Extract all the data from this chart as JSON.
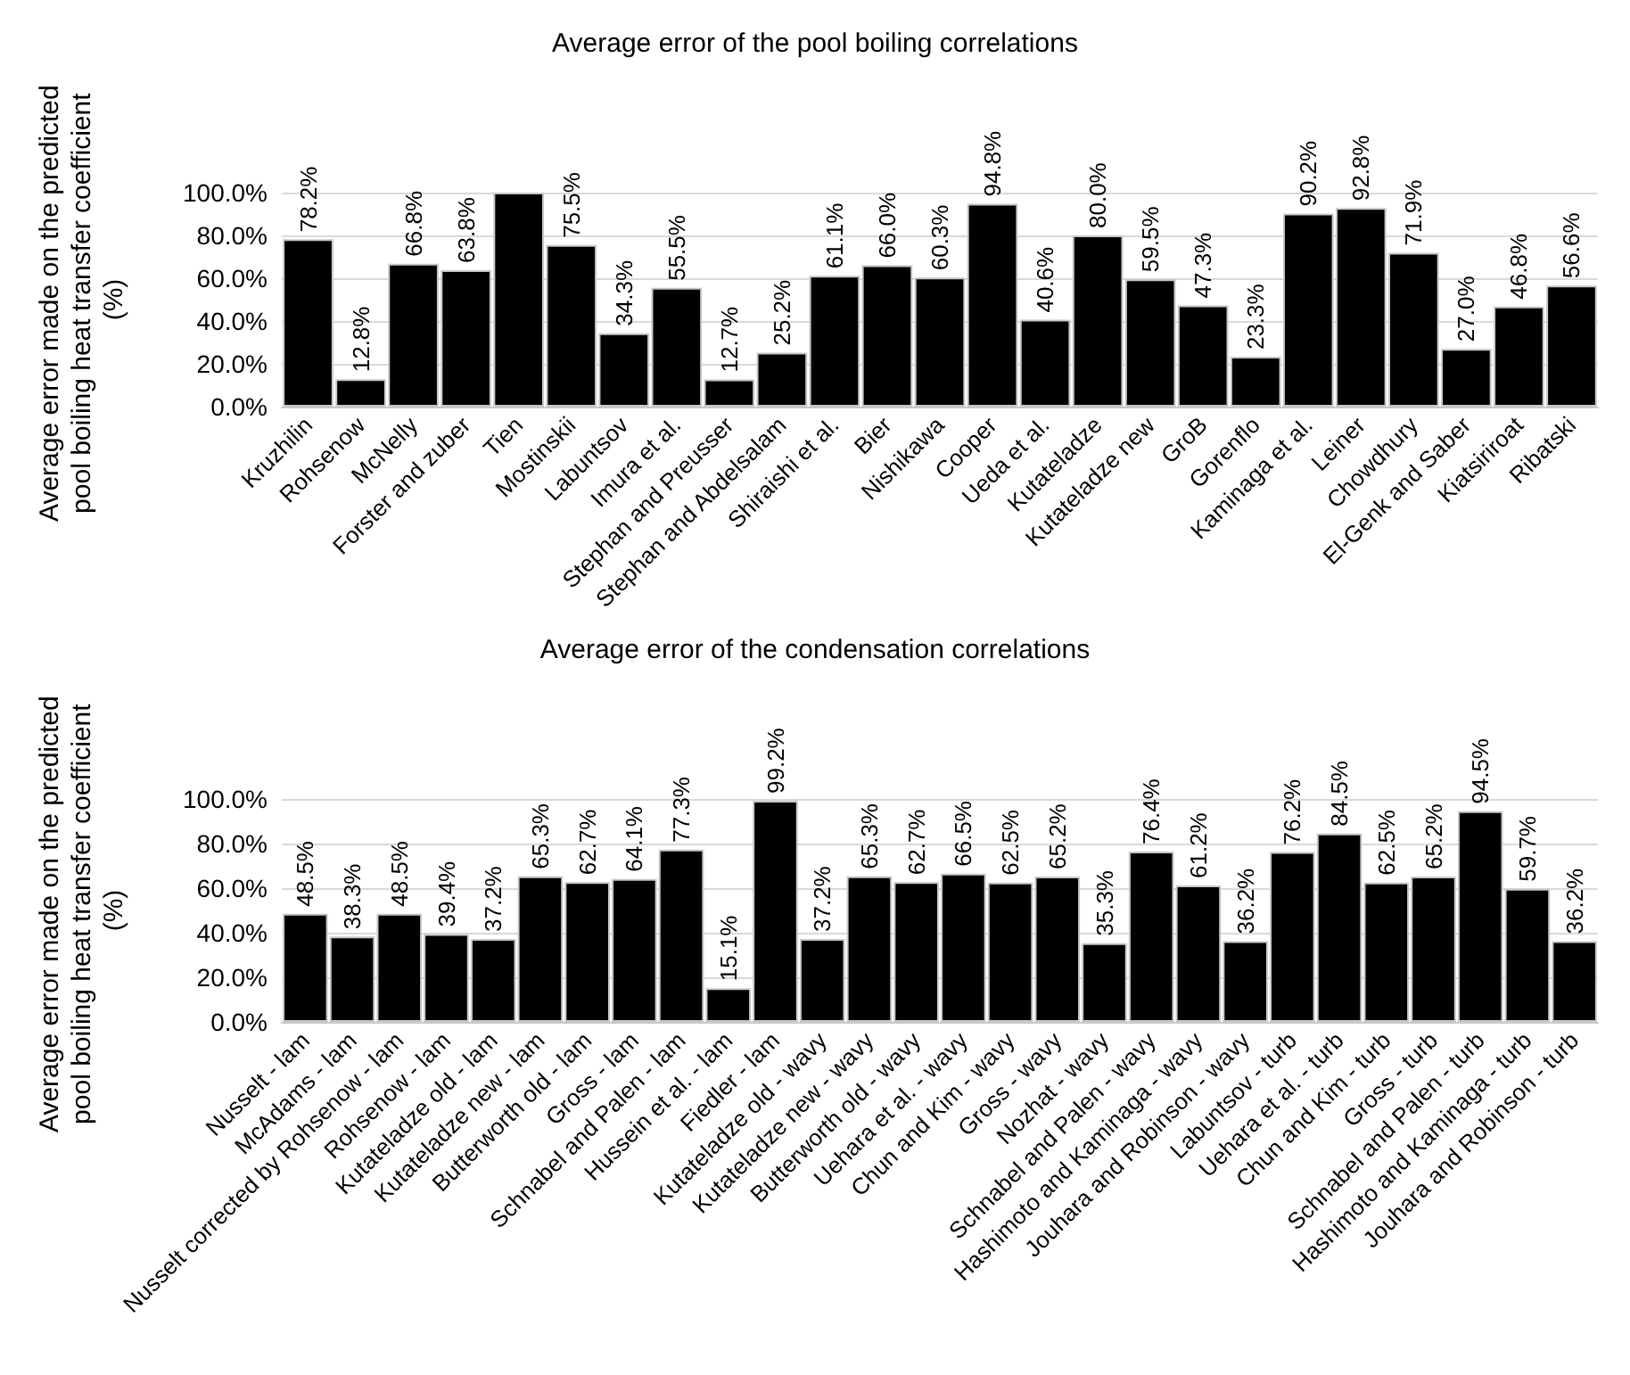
{
  "chart_data": [
    {
      "type": "bar",
      "title": "Average error of the pool boiling correlations",
      "ylabel": "Average error made on the predicted pool boiling heat transfer coefficient (%)",
      "categories": [
        "Kruzhilin",
        "Rohsenow",
        "McNelly",
        "Forster and zuber",
        "Tien",
        "Mostinskii",
        "Labuntsov",
        "Imura et al.",
        "Stephan and Preusser",
        "Stephan and Abdelsalam",
        "Shiraishi et al.",
        "Bier",
        "Nishikawa",
        "Cooper",
        "Ueda et al.",
        "Kutateladze",
        "Kutateladze new",
        "GroB",
        "Gorenflo",
        "Kaminaga et al.",
        "Leiner",
        "Chowdhury",
        "El-Genk and Saber",
        "Kiatsiriroat",
        "Ribatski"
      ],
      "values": [
        78.2,
        12.8,
        66.8,
        63.8,
        100,
        75.5,
        34.3,
        55.5,
        12.7,
        25.2,
        61.1,
        66.0,
        60.3,
        94.8,
        40.6,
        80.0,
        59.5,
        47.3,
        23.3,
        90.2,
        92.8,
        71.9,
        27.0,
        46.8,
        56.6
      ],
      "value_labels": [
        "78.2%",
        "12.8%",
        "66.8%",
        "63.8%",
        null,
        "75.5%",
        "34.3%",
        "55.5%",
        "12.7%",
        "25.2%",
        "61.1%",
        "66.0%",
        "60.3%",
        "94.8%",
        "40.6%",
        "80.0%",
        "59.5%",
        "47.3%",
        "23.3%",
        "90.2%",
        "92.8%",
        "71.9%",
        "27.0%",
        "46.8%",
        "56.6%"
      ],
      "color": "#000000",
      "ylim": [
        0,
        100
      ],
      "yticks": [
        {
          "value": 0,
          "label": "0.0%"
        },
        {
          "value": 20,
          "label": "20.0%"
        },
        {
          "value": 40,
          "label": "40.0%"
        },
        {
          "value": 60,
          "label": "60.0%"
        },
        {
          "value": 80,
          "label": "80.0%"
        },
        {
          "value": 100,
          "label": "100.0%"
        }
      ],
      "grid": "y"
    },
    {
      "type": "bar",
      "title": "Average error of the condensation correlations",
      "ylabel": "Average error made on the predicted pool boiling heat transfer coefficient (%)",
      "categories": [
        "Nusselt - lam",
        "McAdams - lam",
        "Nusselt corrected by Rohsenow - lam",
        "Rohsenow - lam",
        "Kutateladze old - lam",
        "Kutateladze new - lam",
        "Butterworth old - lam",
        "Gross - lam",
        "Schnabel and Palen - lam",
        "Hussein et al. - lam",
        "Fiedler - lam",
        "Kutateladze old - wavy",
        "Kutateladze new - wavy",
        "Butterworth old - wavy",
        "Uehara et al. - wavy",
        "Chun and Kim - wavy",
        "Gross - wavy",
        "Nozhat - wavy",
        "Schnabel and Palen - wavy",
        "Hashimoto and Kaminaga - wavy",
        "Jouhara and Robinson - wavy",
        "Labuntsov - turb",
        "Uehara et al. - turb",
        "Chun and Kim - turb",
        "Gross - turb",
        "Schnabel and Palen - turb",
        "Hashimoto and Kaminaga - turb",
        "Jouhara and Robinson - turb"
      ],
      "values": [
        48.5,
        38.3,
        48.5,
        39.4,
        37.2,
        65.3,
        62.7,
        64.1,
        77.3,
        15.1,
        99.2,
        37.2,
        65.3,
        62.7,
        66.5,
        62.5,
        65.2,
        35.3,
        76.4,
        61.2,
        36.2,
        76.2,
        84.5,
        62.5,
        65.2,
        94.5,
        59.7,
        36.2
      ],
      "value_labels": [
        "48.5%",
        "38.3%",
        "48.5%",
        "39.4%",
        "37.2%",
        "65.3%",
        "62.7%",
        "64.1%",
        "77.3%",
        "15.1%",
        "99.2%",
        "37.2%",
        "65.3%",
        "62.7%",
        "66.5%",
        "62.5%",
        "65.2%",
        "35.3%",
        "76.4%",
        "61.2%",
        "36.2%",
        "76.2%",
        "84.5%",
        "62.5%",
        "65.2%",
        "94.5%",
        "59.7%",
        "36.2%"
      ],
      "color": "#000000",
      "ylim": [
        0,
        100
      ],
      "yticks": [
        {
          "value": 0,
          "label": "0.0%"
        },
        {
          "value": 20,
          "label": "20.0%"
        },
        {
          "value": 40,
          "label": "40.0%"
        },
        {
          "value": 60,
          "label": "60.0%"
        },
        {
          "value": 80,
          "label": "80.0%"
        },
        {
          "value": 100,
          "label": "100.0%"
        }
      ],
      "grid": "y"
    }
  ]
}
